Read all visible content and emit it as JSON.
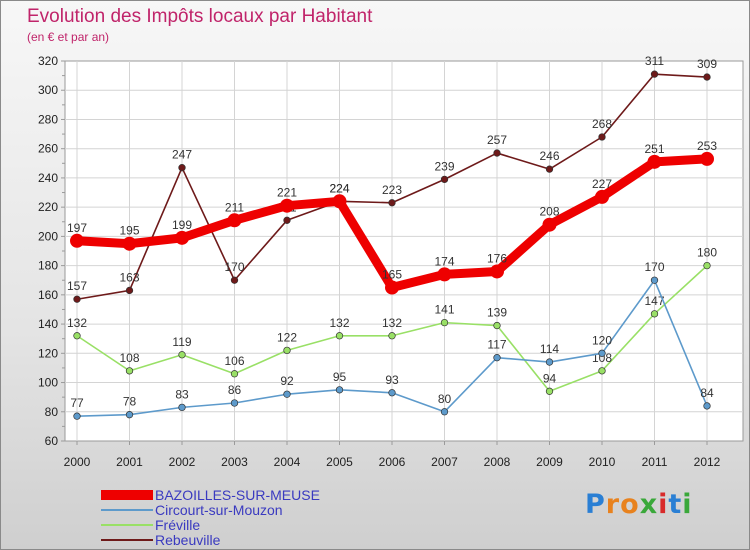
{
  "header": {
    "title": "Evolution des Impôts locaux par Habitant",
    "subtitle": "(en € et par an)"
  },
  "logo": {
    "text": "Proxiti",
    "colors": [
      "#2a7fd4",
      "#e8821e",
      "#e8821e",
      "#3aa83a",
      "#d82a2a",
      "#2a7fd4",
      "#3aa83a"
    ]
  },
  "chart_data": {
    "type": "line",
    "x": [
      2000,
      2001,
      2002,
      2003,
      2004,
      2005,
      2006,
      2007,
      2008,
      2009,
      2010,
      2011,
      2012
    ],
    "ylim": [
      60,
      320
    ],
    "yticks": [
      60,
      80,
      100,
      120,
      140,
      160,
      180,
      200,
      220,
      240,
      260,
      280,
      300,
      320
    ],
    "grid": true,
    "legend_position": "bottom-left",
    "series": [
      {
        "name": "Rebeuville",
        "color": "#6e1a1a",
        "values": [
          157,
          163,
          247,
          170,
          211,
          224,
          223,
          239,
          257,
          246,
          268,
          311,
          309
        ]
      },
      {
        "name": "Fréville",
        "color": "#99e066",
        "values": [
          132,
          108,
          119,
          106,
          122,
          132,
          132,
          141,
          139,
          94,
          108,
          147,
          180
        ]
      },
      {
        "name": "Circourt-sur-Mouzon",
        "color": "#5d9acb",
        "values": [
          77,
          78,
          83,
          86,
          92,
          95,
          93,
          80,
          117,
          114,
          120,
          170,
          84
        ]
      },
      {
        "name": "BAZOILLES-SUR-MEUSE",
        "color": "#ee0000",
        "values": [
          197,
          195,
          199,
          211,
          221,
          224,
          165,
          174,
          176,
          208,
          227,
          251,
          253
        ]
      }
    ],
    "legend_order": [
      "BAZOILLES-SUR-MEUSE",
      "Circourt-sur-Mouzon",
      "Fréville",
      "Rebeuville"
    ]
  }
}
